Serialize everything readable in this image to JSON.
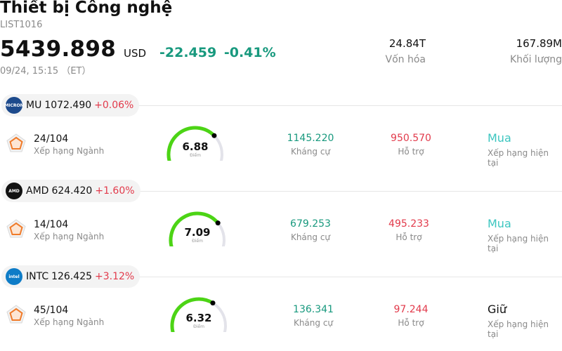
{
  "header": {
    "title": "Thiết bị Công nghệ",
    "code": "LIST1016",
    "price": "5439.898",
    "currency": "USD",
    "change": "-22.459",
    "change_pct": "-0.41%",
    "timestamp": "09/24, 15:15 （ET）",
    "market_cap_value": "24.84T",
    "market_cap_label": "Vốn hóa",
    "volume_value": "167.89M",
    "volume_label": "Khối lượng"
  },
  "labels": {
    "rank": "Xếp hạng Ngành",
    "score": "Điểm",
    "resistance": "Kháng cự",
    "support": "Hỗ trợ",
    "rating": "Xếp hạng hiện tại"
  },
  "colors": {
    "up_teal": "#18997e",
    "down_red": "#e23a4b",
    "gauge_green": "#4cd415",
    "gauge_track": "#e3e3ea",
    "buy": "#3cc6c0"
  },
  "stocks": [
    {
      "symbol": "MU",
      "price": "1072.490",
      "change_pct": "+0.06%",
      "logo_text": "MICRON",
      "logo_color": "#1d4a8c",
      "rank": "24/104",
      "score": "6.88",
      "score_value": 6.88,
      "resistance": "1145.220",
      "support": "950.570",
      "rating": "Mua",
      "rating_color": "#3cc6c0"
    },
    {
      "symbol": "AMD",
      "price": "624.420",
      "change_pct": "+1.60%",
      "logo_text": "AMD",
      "logo_color": "#111111",
      "rank": "14/104",
      "score": "7.09",
      "score_value": 7.09,
      "resistance": "679.253",
      "support": "495.233",
      "rating": "Mua",
      "rating_color": "#3cc6c0"
    },
    {
      "symbol": "INTC",
      "price": "126.425",
      "change_pct": "+3.12%",
      "logo_text": "intel",
      "logo_color": "#0e7cc7",
      "rank": "45/104",
      "score": "6.32",
      "score_value": 6.32,
      "resistance": "136.341",
      "support": "97.244",
      "rating": "Giữ",
      "rating_color": "#111111"
    }
  ]
}
